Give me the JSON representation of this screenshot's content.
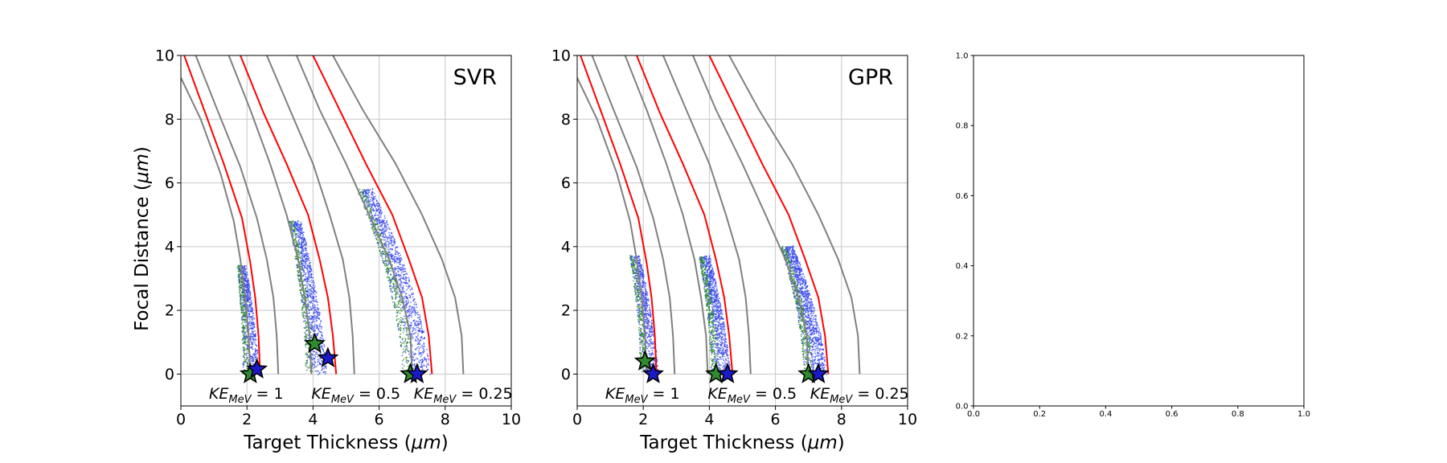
{
  "chart_data": [
    {
      "type": "scatter",
      "panel_label": "SVR",
      "xlabel_text": "Target Thickness (",
      "xlabel_unit": "μm",
      "xlabel_close": ")",
      "ylabel_text": "Focal Distance (",
      "ylabel_unit": "μm",
      "ylabel_close": ")",
      "xlim": [
        0,
        10
      ],
      "ylim": [
        -1,
        10
      ],
      "xticks": [
        "0",
        "2",
        "4",
        "6",
        "8",
        "10"
      ],
      "yticks": [
        "0",
        "2",
        "4",
        "6",
        "8",
        "10"
      ],
      "grid": true,
      "ke_labels": [
        {
          "main": "KE",
          "sub": "MeV",
          "rest": " = 1",
          "x": 0.85
        },
        {
          "main": "KE",
          "sub": "MeV",
          "rest": " = 0.5",
          "x": 3.95
        },
        {
          "main": "KE",
          "sub": "MeV",
          "rest": " = 0.25",
          "x": 7.05
        }
      ],
      "groups": [
        {
          "gray_left": [
            [
              0.0,
              9.3
            ],
            [
              0.6,
              8.0
            ],
            [
              1.2,
              6.3
            ],
            [
              1.6,
              4.8
            ],
            [
              1.8,
              3.6
            ],
            [
              1.95,
              2.4
            ],
            [
              2.05,
              1.2
            ],
            [
              2.1,
              0.0
            ]
          ],
          "red": [
            [
              0.1,
              10.0
            ],
            [
              0.7,
              8.3
            ],
            [
              1.3,
              6.6
            ],
            [
              1.85,
              4.9
            ],
            [
              2.1,
              3.5
            ],
            [
              2.25,
              2.4
            ],
            [
              2.35,
              1.2
            ],
            [
              2.4,
              0.0
            ]
          ],
          "gray_right": [
            [
              0.45,
              10.0
            ],
            [
              1.1,
              8.3
            ],
            [
              1.8,
              6.5
            ],
            [
              2.3,
              4.9
            ],
            [
              2.6,
              3.6
            ],
            [
              2.8,
              2.4
            ],
            [
              2.9,
              1.2
            ],
            [
              2.95,
              0.0
            ]
          ],
          "cloud_top": 3.4,
          "cloud_top_x": 1.8,
          "cloud_bottom_x": 2.05,
          "cloud_width": 0.5,
          "star_green": [
            2.1,
            0.0
          ],
          "star_blue": [
            2.3,
            0.15
          ]
        },
        {
          "gray_left": [
            [
              1.45,
              10.0
            ],
            [
              2.1,
              8.3
            ],
            [
              2.7,
              6.6
            ],
            [
              3.2,
              5.0
            ],
            [
              3.55,
              3.6
            ],
            [
              3.75,
              2.4
            ],
            [
              3.9,
              1.2
            ],
            [
              3.95,
              0.0
            ]
          ],
          "red": [
            [
              1.8,
              10.0
            ],
            [
              2.5,
              8.2
            ],
            [
              3.2,
              6.6
            ],
            [
              3.85,
              5.0
            ],
            [
              4.2,
              3.6
            ],
            [
              4.45,
              2.4
            ],
            [
              4.6,
              1.2
            ],
            [
              4.7,
              0.0
            ]
          ],
          "gray_right": [
            [
              2.6,
              10.0
            ],
            [
              3.3,
              8.3
            ],
            [
              4.0,
              6.6
            ],
            [
              4.5,
              5.0
            ],
            [
              4.9,
              3.6
            ],
            [
              5.1,
              2.4
            ],
            [
              5.2,
              1.2
            ],
            [
              5.25,
              0.0
            ]
          ],
          "cloud_top": 4.8,
          "cloud_top_x": 3.4,
          "cloud_bottom_x": 4.0,
          "cloud_width": 0.65,
          "star_green": [
            4.05,
            0.95
          ],
          "star_blue": [
            4.45,
            0.5
          ]
        },
        {
          "gray_left": [
            [
              3.5,
              10.0
            ],
            [
              4.2,
              8.3
            ],
            [
              5.0,
              6.6
            ],
            [
              5.7,
              5.0
            ],
            [
              6.3,
              3.6
            ],
            [
              6.7,
              2.4
            ],
            [
              6.95,
              1.2
            ],
            [
              7.0,
              0.0
            ]
          ],
          "red": [
            [
              4.0,
              10.0
            ],
            [
              4.8,
              8.3
            ],
            [
              5.6,
              6.6
            ],
            [
              6.4,
              5.0
            ],
            [
              6.9,
              3.6
            ],
            [
              7.3,
              2.4
            ],
            [
              7.5,
              1.2
            ],
            [
              7.6,
              0.0
            ]
          ],
          "gray_right": [
            [
              4.6,
              10.0
            ],
            [
              5.5,
              8.3
            ],
            [
              6.5,
              6.6
            ],
            [
              7.3,
              5.0
            ],
            [
              7.9,
              3.6
            ],
            [
              8.3,
              2.4
            ],
            [
              8.5,
              1.2
            ],
            [
              8.55,
              0.0
            ]
          ],
          "cloud_top": 5.8,
          "cloud_top_x": 5.5,
          "cloud_bottom_x": 7.0,
          "cloud_width": 0.85,
          "star_green": [
            6.95,
            0.0
          ],
          "star_blue": [
            7.15,
            0.0
          ]
        }
      ]
    },
    {
      "type": "scatter",
      "panel_label": "GPR",
      "xlabel_text": "Target Thickness (",
      "xlabel_unit": "μm",
      "xlabel_close": ")",
      "ylabel_text": "",
      "ylabel_unit": "",
      "ylabel_close": "",
      "xlim": [
        0,
        10
      ],
      "ylim": [
        -1,
        10
      ],
      "xticks": [
        "0",
        "2",
        "4",
        "6",
        "8",
        "10"
      ],
      "yticks": [
        "0",
        "2",
        "4",
        "6",
        "8",
        "10"
      ],
      "grid": true,
      "ke_labels": [
        {
          "main": "KE",
          "sub": "MeV",
          "rest": " = 1",
          "x": 0.85
        },
        {
          "main": "KE",
          "sub": "MeV",
          "rest": " = 0.5",
          "x": 3.95
        },
        {
          "main": "KE",
          "sub": "MeV",
          "rest": " = 0.25",
          "x": 7.05
        }
      ],
      "groups": [
        {
          "gray_left": [
            [
              0.0,
              9.3
            ],
            [
              0.6,
              8.0
            ],
            [
              1.2,
              6.3
            ],
            [
              1.6,
              4.8
            ],
            [
              1.8,
              3.6
            ],
            [
              1.95,
              2.4
            ],
            [
              2.05,
              1.2
            ],
            [
              2.1,
              0.0
            ]
          ],
          "red": [
            [
              0.1,
              10.0
            ],
            [
              0.7,
              8.3
            ],
            [
              1.3,
              6.6
            ],
            [
              1.85,
              4.9
            ],
            [
              2.1,
              3.5
            ],
            [
              2.25,
              2.4
            ],
            [
              2.35,
              1.2
            ],
            [
              2.4,
              0.0
            ]
          ],
          "gray_right": [
            [
              0.45,
              10.0
            ],
            [
              1.1,
              8.3
            ],
            [
              1.8,
              6.5
            ],
            [
              2.3,
              4.9
            ],
            [
              2.6,
              3.6
            ],
            [
              2.8,
              2.4
            ],
            [
              2.9,
              1.2
            ],
            [
              2.95,
              0.0
            ]
          ],
          "cloud_top": 3.7,
          "cloud_top_x": 1.7,
          "cloud_bottom_x": 2.1,
          "cloud_width": 0.55,
          "star_green": [
            2.05,
            0.4
          ],
          "star_blue": [
            2.3,
            0.0
          ]
        },
        {
          "gray_left": [
            [
              1.45,
              10.0
            ],
            [
              2.1,
              8.3
            ],
            [
              2.7,
              6.6
            ],
            [
              3.2,
              5.0
            ],
            [
              3.55,
              3.6
            ],
            [
              3.75,
              2.4
            ],
            [
              3.9,
              1.2
            ],
            [
              3.95,
              0.0
            ]
          ],
          "red": [
            [
              1.8,
              10.0
            ],
            [
              2.5,
              8.2
            ],
            [
              3.2,
              6.6
            ],
            [
              3.85,
              5.0
            ],
            [
              4.2,
              3.6
            ],
            [
              4.45,
              2.4
            ],
            [
              4.6,
              1.2
            ],
            [
              4.7,
              0.0
            ]
          ],
          "gray_right": [
            [
              2.6,
              10.0
            ],
            [
              3.3,
              8.3
            ],
            [
              4.0,
              6.6
            ],
            [
              4.5,
              5.0
            ],
            [
              4.9,
              3.6
            ],
            [
              5.1,
              2.4
            ],
            [
              5.2,
              1.2
            ],
            [
              5.25,
              0.0
            ]
          ],
          "cloud_top": 3.7,
          "cloud_top_x": 3.8,
          "cloud_bottom_x": 4.25,
          "cloud_width": 0.6,
          "star_green": [
            4.2,
            0.0
          ],
          "star_blue": [
            4.55,
            0.0
          ]
        },
        {
          "gray_left": [
            [
              3.5,
              10.0
            ],
            [
              4.2,
              8.3
            ],
            [
              5.0,
              6.6
            ],
            [
              5.7,
              5.0
            ],
            [
              6.3,
              3.6
            ],
            [
              6.7,
              2.4
            ],
            [
              6.95,
              1.2
            ],
            [
              7.0,
              0.0
            ]
          ],
          "red": [
            [
              4.0,
              10.0
            ],
            [
              4.8,
              8.3
            ],
            [
              5.6,
              6.6
            ],
            [
              6.4,
              5.0
            ],
            [
              6.9,
              3.6
            ],
            [
              7.3,
              2.4
            ],
            [
              7.5,
              1.2
            ],
            [
              7.6,
              0.0
            ]
          ],
          "gray_right": [
            [
              4.6,
              10.0
            ],
            [
              5.5,
              8.3
            ],
            [
              6.5,
              6.6
            ],
            [
              7.3,
              5.0
            ],
            [
              7.9,
              3.6
            ],
            [
              8.3,
              2.4
            ],
            [
              8.5,
              1.2
            ],
            [
              8.55,
              0.0
            ]
          ],
          "cloud_top": 4.0,
          "cloud_top_x": 6.3,
          "cloud_bottom_x": 7.1,
          "cloud_width": 0.7,
          "star_green": [
            7.0,
            0.0
          ],
          "star_blue": [
            7.3,
            0.0
          ]
        }
      ]
    },
    {
      "type": "empty",
      "xlim": [
        0.0,
        1.0
      ],
      "ylim": [
        0.0,
        1.0
      ],
      "xticks": [
        "0.0",
        "0.2",
        "0.4",
        "0.6",
        "0.8",
        "1.0"
      ],
      "yticks": [
        "0.0",
        "0.2",
        "0.4",
        "0.6",
        "0.8",
        "1.0"
      ],
      "grid": false
    }
  ],
  "colors": {
    "curve_gray": "#808080",
    "curve_red": "#ff0000",
    "cloud_blue": "#3344ee",
    "cloud_green": "#228822",
    "star_green": "#2e8b2e",
    "star_blue": "#1a1acc",
    "grid": "#c8c8c8"
  }
}
